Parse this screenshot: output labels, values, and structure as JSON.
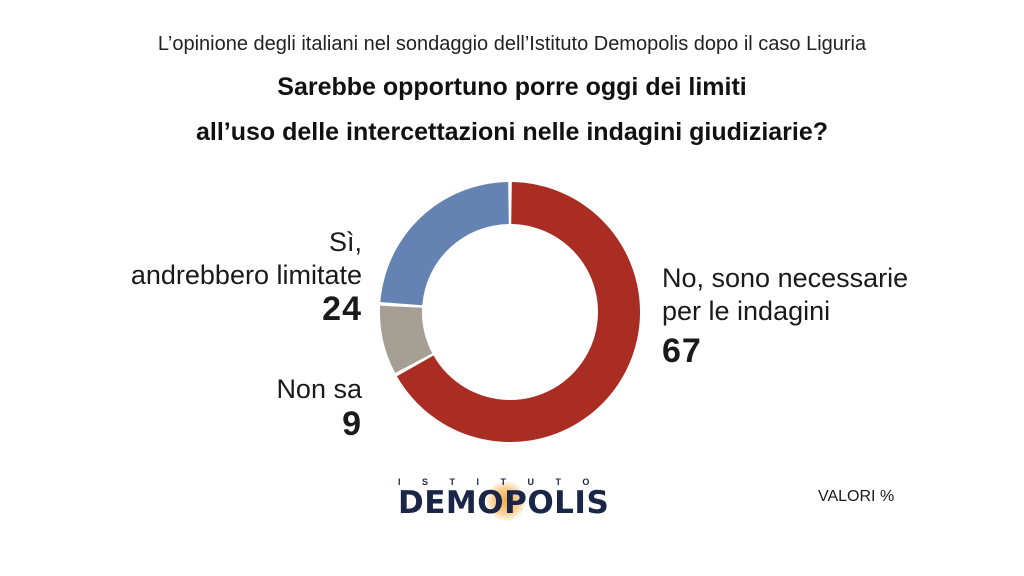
{
  "subtitle": "L’opinione degli italiani nel sondaggio dell’Istituto Demopolis dopo il caso Liguria",
  "question_line1": "Sarebbe opportuno porre oggi dei limiti",
  "question_line2": "all’uso delle intercettazioni nelle indagini giudiziarie?",
  "chart_data": {
    "type": "pie",
    "donut": true,
    "slices": [
      {
        "label_line1": "No, sono necessarie",
        "label_line2": "per le indagini",
        "value": 67,
        "color": "#a92d22"
      },
      {
        "label_line1": "Non sa",
        "label_line2": "",
        "value": 9,
        "color": "#a59e93"
      },
      {
        "label_line1": "Sì,",
        "label_line2": "andrebbero limitate",
        "value": 24,
        "color": "#6483b3"
      }
    ]
  },
  "logo": {
    "top_text": "ISTITUTO",
    "main_text": "DEMOPOLIS"
  },
  "unit_label": "VALORI %"
}
